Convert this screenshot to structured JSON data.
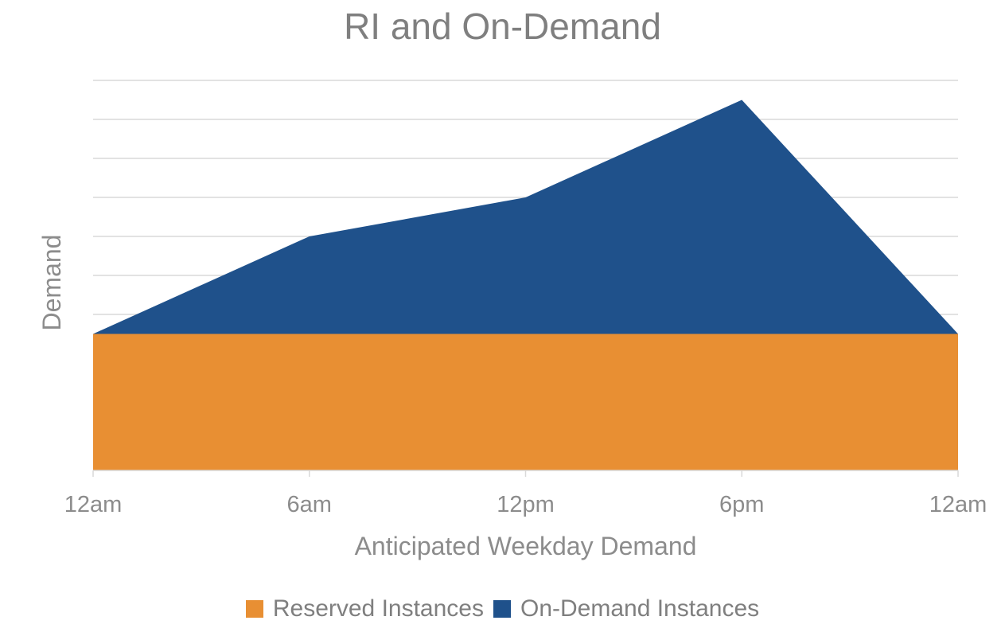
{
  "chart_data": {
    "type": "area",
    "stacked": true,
    "title": "RI and On-Demand",
    "xlabel": "Anticipated Weekday Demand",
    "ylabel": "Demand",
    "categories": [
      "12am",
      "6am",
      "12pm",
      "6pm",
      "12am"
    ],
    "ylim": [
      0,
      10
    ],
    "grid": true,
    "y_tick_labels": false,
    "legend_position": "bottom",
    "series": [
      {
        "name": "Reserved Instances",
        "values": [
          3.5,
          3.5,
          3.5,
          3.5,
          3.5
        ],
        "color": "#e88f33"
      },
      {
        "name": "On-Demand Instances",
        "values": [
          0,
          2.5,
          3.5,
          6.0,
          0
        ],
        "color": "#1f518b"
      }
    ]
  }
}
